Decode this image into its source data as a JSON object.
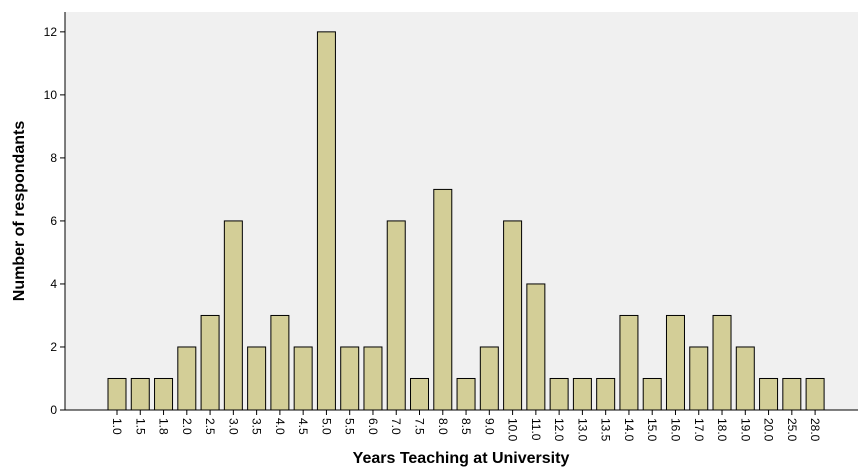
{
  "chart_data": {
    "type": "bar",
    "x_label": "Years Teaching at University",
    "y_label": "Number of respondants",
    "categories": [
      "1.0",
      "1.5",
      "1.8",
      "2.0",
      "2.5",
      "3.0",
      "3.5",
      "4.0",
      "4.5",
      "5.0",
      "5.5",
      "6.0",
      "7.0",
      "7.5",
      "8.0",
      "8.5",
      "9.0",
      "10.0",
      "11.0",
      "12.0",
      "13.0",
      "13.5",
      "14.0",
      "15.0",
      "16.0",
      "17.0",
      "18.0",
      "19.0",
      "20.0",
      "25.0",
      "28.0"
    ],
    "values": [
      1,
      1,
      1,
      2,
      3,
      6,
      2,
      3,
      2,
      12,
      2,
      2,
      6,
      1,
      7,
      1,
      2,
      6,
      4,
      1,
      1,
      1,
      3,
      1,
      3,
      2,
      3,
      2,
      1,
      1,
      1
    ],
    "color": "#d3ce97",
    "ylim": [
      0,
      12.63
    ],
    "yticks": [
      0,
      2,
      4,
      6,
      8,
      10,
      12
    ],
    "grid": false
  }
}
